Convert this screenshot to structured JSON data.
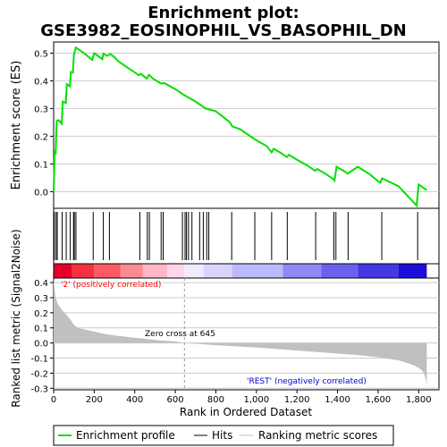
{
  "chart_data": {
    "type": "line",
    "title_line1": "Enrichment plot:",
    "title_line2": "GSE3982_EOSINOPHIL_VS_BASOPHIL_DN",
    "es_ylabel": "Enrichment score (ES)",
    "es_yticks": [
      0.0,
      0.1,
      0.2,
      0.3,
      0.4,
      0.5
    ],
    "es_ylim": [
      -0.06,
      0.54
    ],
    "xlim": [
      0,
      1900
    ],
    "rank_ylabel": "Ranked list metric (Signal2Noise)",
    "rank_yticks": [
      -0.3,
      -0.2,
      -0.1,
      0.0,
      0.1,
      0.2,
      0.3,
      0.4
    ],
    "rank_ylim": [
      -0.31,
      0.43
    ],
    "xlabel": "Rank in Ordered Dataset",
    "xticks": [
      0,
      200,
      400,
      600,
      800,
      1000,
      1200,
      1400,
      1600,
      1800
    ],
    "xtick_labels": [
      "0",
      "200",
      "400",
      "600",
      "800",
      "1,000",
      "1,200",
      "1,400",
      "1,600",
      "1,800"
    ],
    "zero_cross_label": "Zero cross at 645",
    "zero_cross": 645,
    "pos_label": "'2' (positively correlated)",
    "neg_label": "'REST' (negatively correlated)",
    "es_profile": {
      "x": [
        0,
        5,
        10,
        15,
        25,
        40,
        45,
        60,
        65,
        80,
        85,
        95,
        100,
        110,
        130,
        150,
        190,
        200,
        240,
        245,
        265,
        280,
        300,
        320,
        360,
        420,
        430,
        460,
        470,
        490,
        530,
        545,
        600,
        640,
        700,
        750,
        760,
        800,
        870,
        880,
        920,
        990,
        1000,
        1050,
        1075,
        1085,
        1120,
        1150,
        1160,
        1200,
        1250,
        1290,
        1300,
        1350,
        1380,
        1385,
        1395,
        1430,
        1450,
        1500,
        1560,
        1610,
        1620,
        1700,
        1790,
        1800,
        1840
      ],
      "y": [
        0.0,
        0.145,
        0.14,
        0.255,
        0.258,
        0.245,
        0.325,
        0.32,
        0.388,
        0.38,
        0.432,
        0.43,
        0.495,
        0.52,
        0.51,
        0.5,
        0.475,
        0.5,
        0.478,
        0.498,
        0.49,
        0.497,
        0.485,
        0.47,
        0.45,
        0.42,
        0.425,
        0.408,
        0.422,
        0.408,
        0.39,
        0.392,
        0.37,
        0.35,
        0.325,
        0.3,
        0.298,
        0.29,
        0.25,
        0.236,
        0.225,
        0.19,
        0.185,
        0.165,
        0.142,
        0.155,
        0.14,
        0.125,
        0.133,
        0.115,
        0.095,
        0.075,
        0.082,
        0.06,
        0.045,
        0.04,
        0.09,
        0.075,
        0.065,
        0.09,
        0.062,
        0.032,
        0.048,
        0.02,
        -0.05,
        0.026,
        0.005
      ]
    },
    "hits": [
      3,
      12,
      18,
      42,
      62,
      82,
      98,
      102,
      110,
      195,
      245,
      275,
      425,
      462,
      472,
      530,
      540,
      635,
      648,
      655,
      665,
      682,
      720,
      738,
      755,
      765,
      878,
      992,
      1075,
      1152,
      1292,
      1382,
      1392,
      1452,
      1618,
      1795
    ],
    "rank_metric": {
      "x": [
        0,
        5,
        10,
        20,
        40,
        60,
        80,
        100,
        120,
        150,
        200,
        250,
        300,
        400,
        500,
        600,
        645,
        700,
        800,
        900,
        1000,
        1100,
        1200,
        1300,
        1400,
        1500,
        1600,
        1650,
        1700,
        1750,
        1780,
        1800,
        1815,
        1825,
        1835,
        1840
      ],
      "y": [
        0.43,
        0.35,
        0.3,
        0.26,
        0.22,
        0.19,
        0.16,
        0.12,
        0.1,
        0.09,
        0.075,
        0.06,
        0.05,
        0.035,
        0.02,
        0.01,
        0.0,
        -0.005,
        -0.015,
        -0.022,
        -0.03,
        -0.04,
        -0.05,
        -0.06,
        -0.07,
        -0.08,
        -0.095,
        -0.105,
        -0.115,
        -0.135,
        -0.15,
        -0.165,
        -0.18,
        -0.2,
        -0.24,
        -0.29
      ]
    },
    "band_segments": [
      {
        "x0": 0,
        "x1": 90,
        "color": "#e8002a"
      },
      {
        "x0": 90,
        "x1": 200,
        "color": "#f5303f"
      },
      {
        "x0": 200,
        "x1": 330,
        "color": "#fb5a65"
      },
      {
        "x0": 330,
        "x1": 440,
        "color": "#fd8a93"
      },
      {
        "x0": 440,
        "x1": 560,
        "color": "#ffb6c8"
      },
      {
        "x0": 560,
        "x1": 645,
        "color": "#ffd6ea"
      },
      {
        "x0": 645,
        "x1": 740,
        "color": "#eeeaff"
      },
      {
        "x0": 740,
        "x1": 880,
        "color": "#d7d5fd"
      },
      {
        "x0": 880,
        "x1": 1130,
        "color": "#bdb9fb"
      },
      {
        "x0": 1130,
        "x1": 1320,
        "color": "#8f88f5"
      },
      {
        "x0": 1320,
        "x1": 1500,
        "color": "#6a62ee"
      },
      {
        "x0": 1500,
        "x1": 1700,
        "color": "#4338e4"
      },
      {
        "x0": 1700,
        "x1": 1840,
        "color": "#1c0ed8"
      }
    ],
    "legend": {
      "profile": "Enrichment profile",
      "hits": "Hits",
      "metric": "Ranking metric scores"
    },
    "colors": {
      "profile": "#00e000",
      "grid": "#cccccc",
      "metric_fill": "#c0c0c0",
      "pos_text": "#ff0000",
      "neg_text": "#0000cc"
    }
  }
}
